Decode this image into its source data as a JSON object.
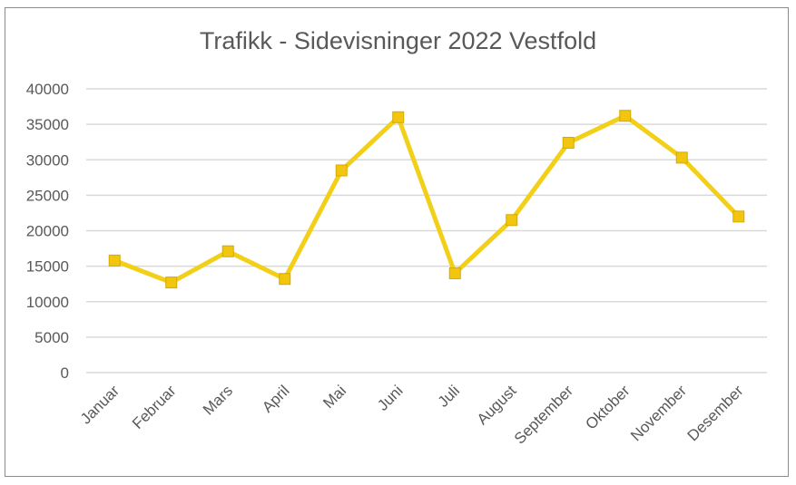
{
  "chart_data": {
    "type": "line",
    "title": "Trafikk - Sidevisninger 2022 Vestfold",
    "xlabel": "",
    "ylabel": "",
    "categories": [
      "Januar",
      "Februar",
      "Mars",
      "April",
      "Mai",
      "Juni",
      "Juli",
      "August",
      "September",
      "Oktober",
      "November",
      "Desember"
    ],
    "series": [
      {
        "values": [
          15800,
          12700,
          17100,
          13200,
          28500,
          36000,
          14000,
          21500,
          32400,
          36200,
          30300,
          22000
        ]
      }
    ],
    "ylim": [
      0,
      40000
    ],
    "yticks": [
      "0",
      "5000",
      "10000",
      "15000",
      "20000",
      "25000",
      "30000",
      "35000",
      "40000"
    ],
    "grid": true,
    "legend": "none",
    "colors": {
      "line": "#f2d019",
      "marker": "#f2c50f",
      "grid": "#d9d9d9",
      "text": "#595959"
    }
  }
}
